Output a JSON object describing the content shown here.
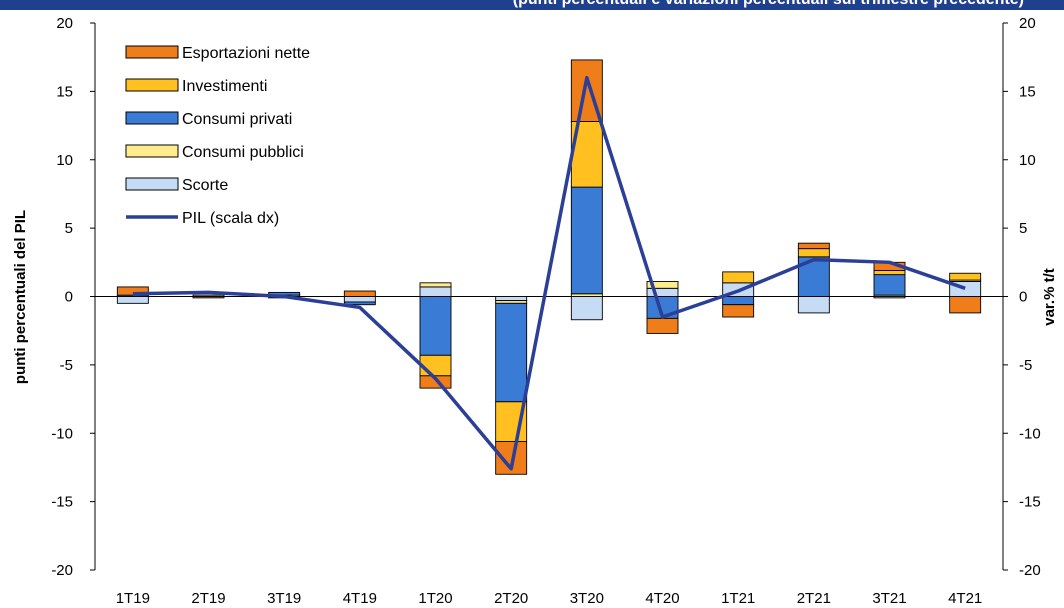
{
  "header": {
    "text": "(punti percentuali e variazioni percentuali sul trimestre precedente)"
  },
  "chart_data": {
    "type": "bar",
    "stacked": true,
    "categories": [
      "1T19",
      "2T19",
      "3T19",
      "4T19",
      "1T20",
      "2T20",
      "3T20",
      "4T20",
      "1T21",
      "2T21",
      "3T21",
      "4T21"
    ],
    "ylabel": "punti percentuali del PIL",
    "y2label": "var.% t/t",
    "ylim": [
      -20,
      20
    ],
    "y2lim": [
      -20,
      20
    ],
    "yticks": [
      "20",
      "15",
      "10",
      "5",
      "0",
      "-5",
      "-10",
      "-15",
      "-20"
    ],
    "y2ticks": [
      "20",
      "15",
      "10",
      "5",
      "0",
      "-5",
      "-10",
      "-15",
      "-20"
    ],
    "legend_position": "top-left",
    "grid": false,
    "series": [
      {
        "name": "Scorte",
        "color": "#c6dcf5",
        "values": [
          -0.5,
          0.1,
          0.1,
          -0.4,
          0.7,
          -0.3,
          -1.7,
          0.6,
          1.0,
          -1.2,
          -0.1,
          1.1
        ]
      },
      {
        "name": "Consumi pubblici",
        "color": "#ffec8c",
        "values": [
          0.0,
          0.0,
          0.0,
          0.0,
          0.3,
          -0.2,
          0.2,
          0.5,
          0.0,
          0.0,
          0.1,
          0.1
        ]
      },
      {
        "name": "Consumi privati",
        "color": "#3a7bd5",
        "values": [
          0.1,
          0.0,
          0.2,
          -0.2,
          -4.3,
          -7.2,
          7.8,
          -1.6,
          -0.6,
          2.9,
          1.5,
          0.0
        ]
      },
      {
        "name": "Investimenti",
        "color": "#ffc020",
        "values": [
          0.0,
          0.0,
          0.0,
          0.0,
          -1.5,
          -2.9,
          4.8,
          0.0,
          0.8,
          0.6,
          0.3,
          0.5
        ]
      },
      {
        "name": "Esportazioni nette",
        "color": "#ef7d1a",
        "values": [
          0.6,
          -0.1,
          -0.1,
          0.4,
          -0.9,
          -2.4,
          4.5,
          -1.1,
          -0.9,
          0.4,
          0.6,
          -1.2
        ]
      }
    ],
    "line": {
      "name": "PIL (scala dx)",
      "color": "#2b3f96",
      "values": [
        0.2,
        0.3,
        0.0,
        -0.8,
        -6.0,
        -12.6,
        16.0,
        -1.5,
        0.4,
        2.7,
        2.5,
        0.6
      ]
    }
  }
}
